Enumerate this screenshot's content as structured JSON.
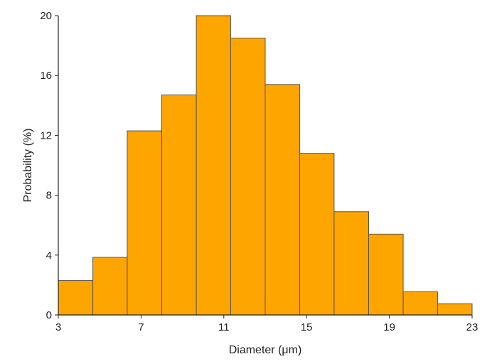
{
  "chart_data": {
    "type": "bar",
    "histogram": true,
    "bins": [
      [
        3,
        4.67
      ],
      [
        4.67,
        6.33
      ],
      [
        6.33,
        8
      ],
      [
        8,
        9.67
      ],
      [
        9.67,
        11.33
      ],
      [
        11.33,
        13
      ],
      [
        13,
        14.67
      ],
      [
        14.67,
        16.33
      ],
      [
        16.33,
        18
      ],
      [
        18,
        19.67
      ],
      [
        19.67,
        21.33
      ],
      [
        21.33,
        23
      ]
    ],
    "values": [
      2.3,
      3.85,
      12.3,
      14.7,
      20.0,
      18.5,
      15.4,
      10.8,
      6.9,
      5.4,
      1.55,
      0.75
    ],
    "xlabel": "Diameter (μm)",
    "ylabel": "Probability (%)",
    "xlim": [
      3,
      23
    ],
    "ylim": [
      0,
      20
    ],
    "xticks": [
      "3",
      "7",
      "11",
      "15",
      "19",
      "23"
    ],
    "yticks": [
      "0",
      "4",
      "8",
      "12",
      "16",
      "20"
    ],
    "grid": false,
    "bar_color": "#FFA500",
    "edge_color": "#555555"
  }
}
